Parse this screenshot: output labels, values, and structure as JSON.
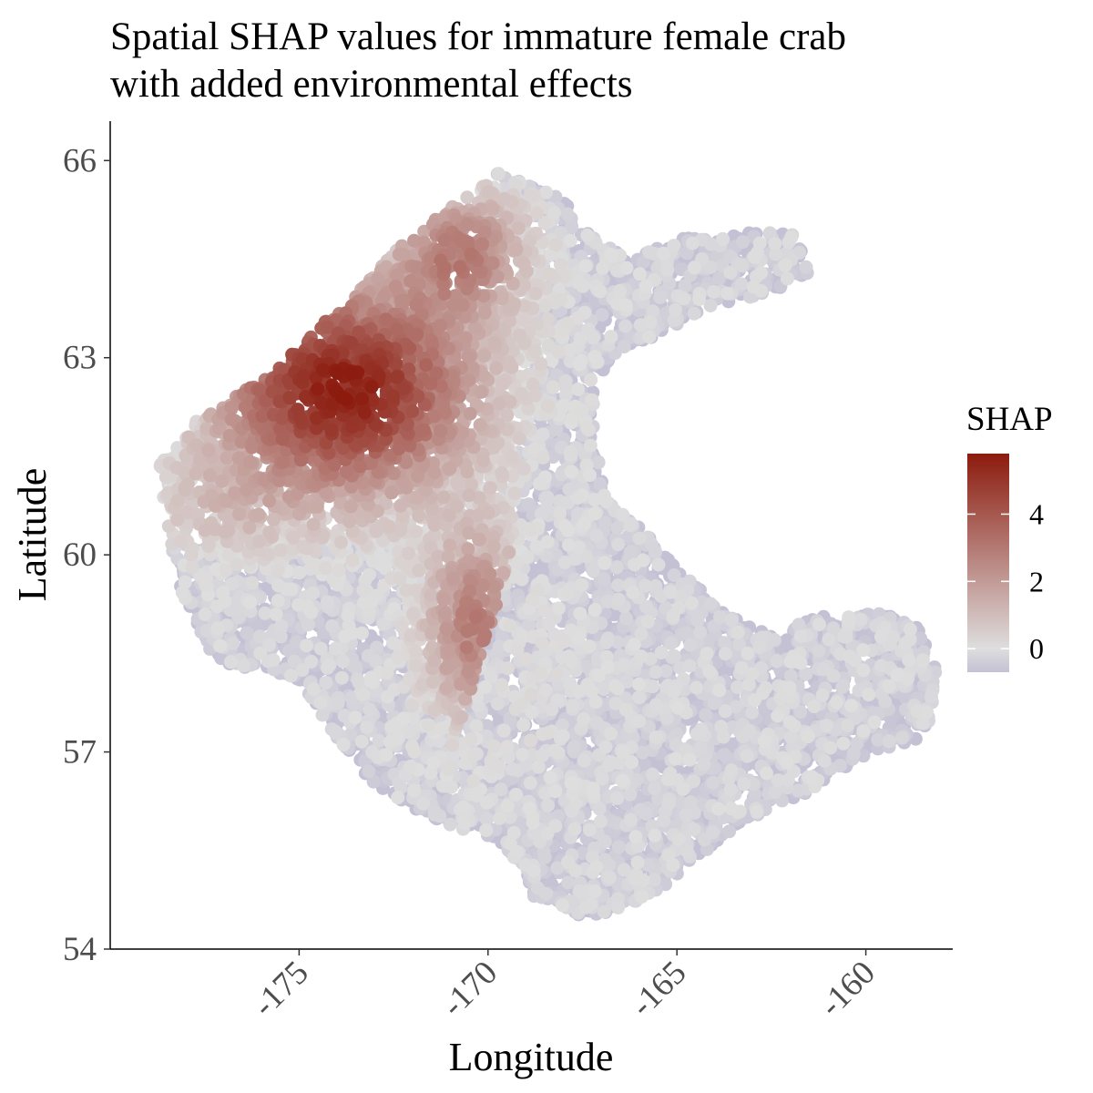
{
  "chart_data": {
    "type": "scatter",
    "title_lines": [
      "Spatial SHAP values for immature female crab",
      "with added environmental effects"
    ],
    "xlabel": "Longitude",
    "ylabel": "Latitude",
    "xlim": [
      -180,
      -157.7
    ],
    "ylim": [
      54,
      66.6
    ],
    "x_ticks": [
      -175,
      -170,
      -165,
      -160
    ],
    "x_tick_labels": [
      "-175",
      "-170",
      "-165",
      "-160"
    ],
    "y_ticks": [
      54,
      57,
      60,
      63,
      66
    ],
    "y_tick_labels": [
      "54",
      "57",
      "60",
      "63",
      "66"
    ],
    "grid": false,
    "legend": {
      "title": "SHAP",
      "placement": "right",
      "min": -0.7,
      "max": 5.8,
      "ticks": [
        0,
        2,
        4
      ],
      "tick_labels": [
        "0",
        "2",
        "4"
      ],
      "colors": {
        "low": "#c4c1d4",
        "mid": "#dedede",
        "high": "#8c1b0e"
      }
    },
    "approx_point_count": 9000,
    "point_regions": [
      {
        "description": "northwest high-SHAP cluster",
        "lon_range": [
          -177.5,
          -168
        ],
        "lat_range": [
          60.5,
          65.5
        ],
        "shap_range": [
          1.5,
          5.8
        ]
      },
      {
        "description": "central mid-SHAP band",
        "lon_range": [
          -172,
          -168
        ],
        "lat_range": [
          57.3,
          61
        ],
        "shap_range": [
          0.5,
          4
        ]
      },
      {
        "description": "western near-zero band",
        "lon_range": [
          -179,
          -172
        ],
        "lat_range": [
          58.2,
          61.2
        ],
        "shap_range": [
          -0.7,
          1.5
        ]
      },
      {
        "description": "eastern and southern low-SHAP region",
        "lon_range": [
          -172,
          -158.2
        ],
        "lat_range": [
          54.5,
          65
        ],
        "shap_range": [
          -0.7,
          0
        ]
      }
    ]
  }
}
